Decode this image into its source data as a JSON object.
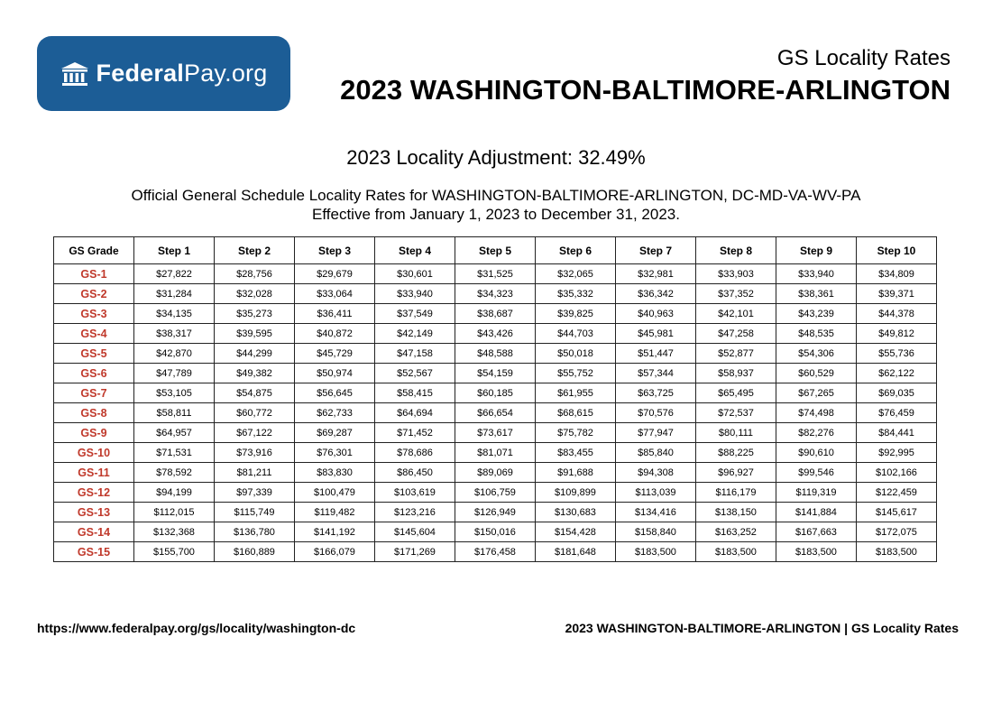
{
  "header": {
    "logo": {
      "brand_bold": "Federal",
      "brand_light": "Pay.org",
      "bg_color": "#1c5d96",
      "icon": "building-icon"
    },
    "subtitle": "GS Locality Rates",
    "title": "2023 WASHINGTON-BALTIMORE-ARLINGTON"
  },
  "adjustment": "2023 Locality Adjustment: 32.49%",
  "description": {
    "line1": "Official General Schedule Locality Rates for WASHINGTON-BALTIMORE-ARLINGTON, DC-MD-VA-WV-PA",
    "line2": "Effective from January 1, 2023 to December 31, 2023."
  },
  "table": {
    "grade_color": "#c0392b",
    "headers": [
      "GS Grade",
      "Step 1",
      "Step 2",
      "Step 3",
      "Step 4",
      "Step 5",
      "Step 6",
      "Step 7",
      "Step 8",
      "Step 9",
      "Step 10"
    ],
    "rows": [
      {
        "grade": "GS-1",
        "steps": [
          "$27,822",
          "$28,756",
          "$29,679",
          "$30,601",
          "$31,525",
          "$32,065",
          "$32,981",
          "$33,903",
          "$33,940",
          "$34,809"
        ]
      },
      {
        "grade": "GS-2",
        "steps": [
          "$31,284",
          "$32,028",
          "$33,064",
          "$33,940",
          "$34,323",
          "$35,332",
          "$36,342",
          "$37,352",
          "$38,361",
          "$39,371"
        ]
      },
      {
        "grade": "GS-3",
        "steps": [
          "$34,135",
          "$35,273",
          "$36,411",
          "$37,549",
          "$38,687",
          "$39,825",
          "$40,963",
          "$42,101",
          "$43,239",
          "$44,378"
        ]
      },
      {
        "grade": "GS-4",
        "steps": [
          "$38,317",
          "$39,595",
          "$40,872",
          "$42,149",
          "$43,426",
          "$44,703",
          "$45,981",
          "$47,258",
          "$48,535",
          "$49,812"
        ]
      },
      {
        "grade": "GS-5",
        "steps": [
          "$42,870",
          "$44,299",
          "$45,729",
          "$47,158",
          "$48,588",
          "$50,018",
          "$51,447",
          "$52,877",
          "$54,306",
          "$55,736"
        ]
      },
      {
        "grade": "GS-6",
        "steps": [
          "$47,789",
          "$49,382",
          "$50,974",
          "$52,567",
          "$54,159",
          "$55,752",
          "$57,344",
          "$58,937",
          "$60,529",
          "$62,122"
        ]
      },
      {
        "grade": "GS-7",
        "steps": [
          "$53,105",
          "$54,875",
          "$56,645",
          "$58,415",
          "$60,185",
          "$61,955",
          "$63,725",
          "$65,495",
          "$67,265",
          "$69,035"
        ]
      },
      {
        "grade": "GS-8",
        "steps": [
          "$58,811",
          "$60,772",
          "$62,733",
          "$64,694",
          "$66,654",
          "$68,615",
          "$70,576",
          "$72,537",
          "$74,498",
          "$76,459"
        ]
      },
      {
        "grade": "GS-9",
        "steps": [
          "$64,957",
          "$67,122",
          "$69,287",
          "$71,452",
          "$73,617",
          "$75,782",
          "$77,947",
          "$80,111",
          "$82,276",
          "$84,441"
        ]
      },
      {
        "grade": "GS-10",
        "steps": [
          "$71,531",
          "$73,916",
          "$76,301",
          "$78,686",
          "$81,071",
          "$83,455",
          "$85,840",
          "$88,225",
          "$90,610",
          "$92,995"
        ]
      },
      {
        "grade": "GS-11",
        "steps": [
          "$78,592",
          "$81,211",
          "$83,830",
          "$86,450",
          "$89,069",
          "$91,688",
          "$94,308",
          "$96,927",
          "$99,546",
          "$102,166"
        ]
      },
      {
        "grade": "GS-12",
        "steps": [
          "$94,199",
          "$97,339",
          "$100,479",
          "$103,619",
          "$106,759",
          "$109,899",
          "$113,039",
          "$116,179",
          "$119,319",
          "$122,459"
        ]
      },
      {
        "grade": "GS-13",
        "steps": [
          "$112,015",
          "$115,749",
          "$119,482",
          "$123,216",
          "$126,949",
          "$130,683",
          "$134,416",
          "$138,150",
          "$141,884",
          "$145,617"
        ]
      },
      {
        "grade": "GS-14",
        "steps": [
          "$132,368",
          "$136,780",
          "$141,192",
          "$145,604",
          "$150,016",
          "$154,428",
          "$158,840",
          "$163,252",
          "$167,663",
          "$172,075"
        ]
      },
      {
        "grade": "GS-15",
        "steps": [
          "$155,700",
          "$160,889",
          "$166,079",
          "$171,269",
          "$176,458",
          "$181,648",
          "$183,500",
          "$183,500",
          "$183,500",
          "$183,500"
        ]
      }
    ]
  },
  "footer": {
    "url": "https://www.federalpay.org/gs/locality/washington-dc",
    "right": "2023 WASHINGTON-BALTIMORE-ARLINGTON | GS Locality Rates"
  }
}
